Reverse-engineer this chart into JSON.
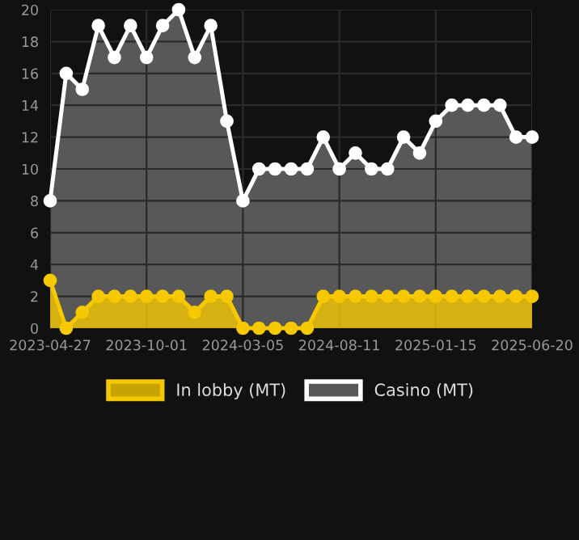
{
  "chart_data": {
    "type": "area",
    "categories": [
      "2023-04-27",
      null,
      null,
      null,
      null,
      null,
      "2023-10-01",
      null,
      null,
      null,
      null,
      null,
      "2024-03-05",
      null,
      null,
      null,
      null,
      null,
      "2024-08-11",
      null,
      null,
      null,
      null,
      null,
      "2025-01-15",
      null,
      null,
      null,
      null,
      null,
      "2025-06-20"
    ],
    "series": [
      {
        "name": "In lobby (MT)",
        "color": "#f5c800",
        "values": [
          3,
          0,
          1,
          2,
          2,
          2,
          2,
          2,
          2,
          1,
          2,
          2,
          0,
          0,
          0,
          0,
          0,
          2,
          2,
          2,
          2,
          2,
          2,
          2,
          2,
          2,
          2,
          2,
          2,
          2,
          2
        ]
      },
      {
        "name": "Casino (MT)",
        "color": "#ffffff",
        "values": [
          8,
          16,
          15,
          19,
          17,
          19,
          17,
          19,
          20,
          17,
          19,
          13,
          8,
          10,
          10,
          10,
          10,
          12,
          10,
          11,
          10,
          10,
          12,
          11,
          13,
          14,
          14,
          14,
          14,
          12,
          12
        ]
      }
    ],
    "ylim": [
      0,
      20
    ],
    "yticks": [
      0,
      2,
      4,
      6,
      8,
      10,
      12,
      14,
      16,
      18,
      20
    ],
    "grid": true,
    "legend": "bottom",
    "marker": "circle",
    "line_style": "solid"
  }
}
